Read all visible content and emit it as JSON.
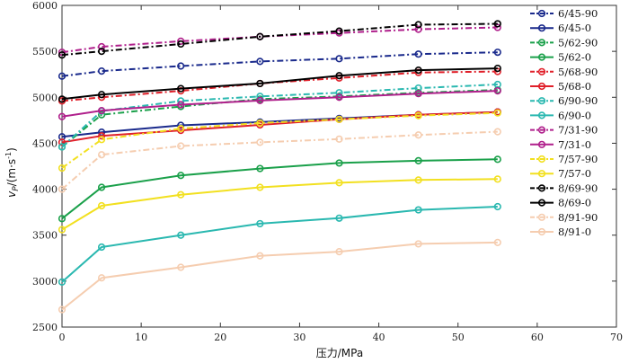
{
  "chart_data": {
    "type": "line",
    "xlabel": "压力/MPa",
    "ylabel": {
      "base": "v",
      "sub": "P",
      "unit": "/(m·s",
      "sup": "-1",
      "close": ")"
    },
    "xlim": [
      0,
      70
    ],
    "ylim": [
      2500,
      6000
    ],
    "x_ticks": [
      0,
      10,
      20,
      30,
      40,
      50,
      60,
      70
    ],
    "y_ticks": [
      2500,
      3000,
      3500,
      4000,
      4500,
      5000,
      5500,
      6000
    ],
    "grid": false,
    "legend_position": "right",
    "x": [
      0,
      5,
      15,
      25,
      35,
      45,
      55
    ],
    "series": [
      {
        "name": "6/45-90",
        "color": "#1a2a8c",
        "dash": true,
        "values": [
          5230,
          5285,
          5340,
          5390,
          5420,
          5470,
          5490
        ]
      },
      {
        "name": "6/45-0",
        "color": "#1a2a8c",
        "dash": false,
        "values": [
          4570,
          4620,
          4695,
          4730,
          4770,
          4810,
          4840
        ]
      },
      {
        "name": "5/62-90",
        "color": "#1aa04a",
        "dash": true,
        "values": [
          4460,
          4810,
          4900,
          4980,
          5010,
          5050,
          5080
        ]
      },
      {
        "name": "5/62-0",
        "color": "#1aa04a",
        "dash": false,
        "values": [
          3680,
          4020,
          4150,
          4225,
          4285,
          4310,
          4325
        ]
      },
      {
        "name": "5/68-90",
        "color": "#e0202a",
        "dash": true,
        "values": [
          4960,
          5000,
          5070,
          5150,
          5210,
          5270,
          5280
        ]
      },
      {
        "name": "5/68-0",
        "color": "#e0202a",
        "dash": false,
        "values": [
          4510,
          4580,
          4640,
          4700,
          4760,
          4810,
          4840
        ]
      },
      {
        "name": "6/90-90",
        "color": "#2ab8b0",
        "dash": true,
        "values": [
          4460,
          4850,
          4960,
          5010,
          5050,
          5100,
          5140
        ]
      },
      {
        "name": "6/90-0",
        "color": "#2ab8b0",
        "dash": false,
        "values": [
          2990,
          3370,
          3500,
          3625,
          3685,
          3775,
          3810
        ]
      },
      {
        "name": "7/31-90",
        "color": "#b0208c",
        "dash": true,
        "values": [
          5490,
          5550,
          5610,
          5660,
          5700,
          5740,
          5760
        ]
      },
      {
        "name": "7/31-0",
        "color": "#b0208c",
        "dash": false,
        "values": [
          4790,
          4855,
          4920,
          4965,
          5000,
          5040,
          5070
        ]
      },
      {
        "name": "7/57-90",
        "color": "#f2e020",
        "dash": true,
        "values": [
          4230,
          4540,
          4660,
          4720,
          4760,
          4800,
          4830
        ]
      },
      {
        "name": "7/57-0",
        "color": "#f2e020",
        "dash": false,
        "values": [
          3560,
          3820,
          3940,
          4020,
          4070,
          4100,
          4110
        ]
      },
      {
        "name": "8/69-90",
        "color": "#000000",
        "dash": true,
        "values": [
          5460,
          5500,
          5580,
          5660,
          5720,
          5790,
          5800
        ]
      },
      {
        "name": "8/69-0",
        "color": "#000000",
        "dash": false,
        "values": [
          4980,
          5030,
          5095,
          5150,
          5235,
          5295,
          5315
        ]
      },
      {
        "name": "8/91-90",
        "color": "#f5cdb0",
        "dash": true,
        "values": [
          4000,
          4375,
          4470,
          4510,
          4545,
          4590,
          4625
        ]
      },
      {
        "name": "8/91-0",
        "color": "#f5cdb0",
        "dash": false,
        "values": [
          2690,
          3035,
          3150,
          3275,
          3320,
          3405,
          3420
        ]
      }
    ]
  }
}
